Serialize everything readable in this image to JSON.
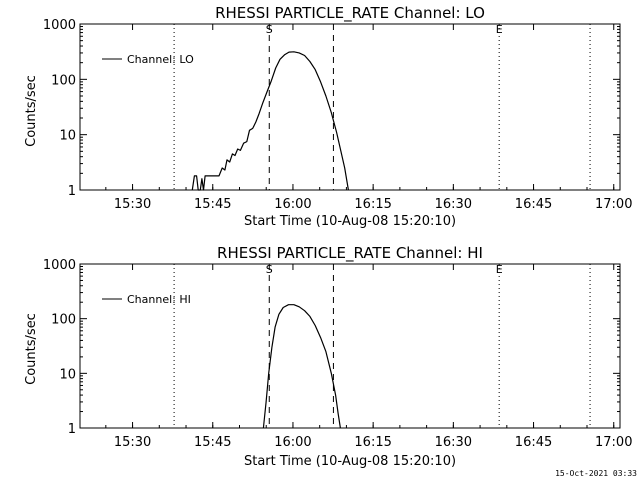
{
  "timestamp": "15-Oct-2021 03:33",
  "colors": {
    "line": "#000000",
    "background": "#ffffff"
  },
  "chart_data": [
    {
      "type": "line",
      "title": "RHESSI PARTICLE_RATE Channel: LO",
      "xlabel": "Start Time (10-Aug-08 15:20:10)",
      "ylabel": "Counts/sec",
      "x_unit": "minutes since 15:20:10",
      "xlim": [
        0,
        101
      ],
      "ylim": [
        1,
        1000
      ],
      "yscale": "log",
      "x_ticks": [
        {
          "value": 9.83,
          "label": "15:30"
        },
        {
          "value": 24.83,
          "label": "15:45"
        },
        {
          "value": 39.83,
          "label": "16:00"
        },
        {
          "value": 54.83,
          "label": "16:15"
        },
        {
          "value": 69.83,
          "label": "16:30"
        },
        {
          "value": 84.83,
          "label": "16:45"
        },
        {
          "value": 99.83,
          "label": "17:00"
        }
      ],
      "y_ticks": [
        {
          "value": 1,
          "label": "1"
        },
        {
          "value": 10,
          "label": "10"
        },
        {
          "value": 100,
          "label": "100"
        },
        {
          "value": 1000,
          "label": "1000"
        }
      ],
      "dotted_lines": [
        17.6,
        78.4,
        95.4
      ],
      "dashed_lines": [
        35.4,
        47.4
      ],
      "markers": [
        {
          "x": 35.4,
          "label": "S"
        },
        {
          "x": 78.4,
          "label": "E"
        }
      ],
      "legend": {
        "label": "Channel: LO",
        "placement": "top-left"
      },
      "series": [
        {
          "name": "Channel: LO",
          "points": [
            [
              21.0,
              1
            ],
            [
              21.4,
              1.8
            ],
            [
              21.8,
              1.8
            ],
            [
              22.1,
              1
            ],
            [
              22.5,
              1
            ],
            [
              22.8,
              1.6
            ],
            [
              23.1,
              1
            ],
            [
              23.4,
              1.8
            ],
            [
              24.4,
              1.8
            ],
            [
              25.0,
              1.8
            ],
            [
              26.0,
              1.8
            ],
            [
              26.6,
              2.5
            ],
            [
              27.1,
              2.3
            ],
            [
              27.5,
              3.5
            ],
            [
              28.0,
              3.2
            ],
            [
              28.5,
              4.5
            ],
            [
              29.0,
              4.2
            ],
            [
              29.5,
              5.5
            ],
            [
              30.0,
              5.2
            ],
            [
              30.6,
              7
            ],
            [
              31.2,
              7.5
            ],
            [
              31.7,
              12
            ],
            [
              32.3,
              13
            ],
            [
              32.9,
              17
            ],
            [
              33.5,
              24
            ],
            [
              34.2,
              38
            ],
            [
              35.0,
              60
            ],
            [
              35.8,
              95
            ],
            [
              36.6,
              160
            ],
            [
              37.4,
              230
            ],
            [
              38.3,
              280
            ],
            [
              39.1,
              310
            ],
            [
              40.0,
              315
            ],
            [
              41.0,
              300
            ],
            [
              42.0,
              270
            ],
            [
              43.0,
              210
            ],
            [
              44.0,
              150
            ],
            [
              45.0,
              90
            ],
            [
              46.0,
              50
            ],
            [
              47.0,
              25
            ],
            [
              48.0,
              11
            ],
            [
              48.8,
              5
            ],
            [
              49.5,
              2.5
            ],
            [
              50.2,
              1
            ]
          ]
        }
      ]
    },
    {
      "type": "line",
      "title": "RHESSI PARTICLE_RATE Channel: HI",
      "xlabel": "Start Time (10-Aug-08 15:20:10)",
      "ylabel": "Counts/sec",
      "x_unit": "minutes since 15:20:10",
      "xlim": [
        0,
        101
      ],
      "ylim": [
        1,
        1000
      ],
      "yscale": "log",
      "x_ticks": [
        {
          "value": 9.83,
          "label": "15:30"
        },
        {
          "value": 24.83,
          "label": "15:45"
        },
        {
          "value": 39.83,
          "label": "16:00"
        },
        {
          "value": 54.83,
          "label": "16:15"
        },
        {
          "value": 69.83,
          "label": "16:30"
        },
        {
          "value": 84.83,
          "label": "16:45"
        },
        {
          "value": 99.83,
          "label": "17:00"
        }
      ],
      "y_ticks": [
        {
          "value": 1,
          "label": "1"
        },
        {
          "value": 10,
          "label": "10"
        },
        {
          "value": 100,
          "label": "100"
        },
        {
          "value": 1000,
          "label": "1000"
        }
      ],
      "dotted_lines": [
        17.6,
        78.4,
        95.4
      ],
      "dashed_lines": [
        35.4,
        47.4
      ],
      "markers": [
        {
          "x": 35.4,
          "label": "S"
        },
        {
          "x": 78.4,
          "label": "E"
        }
      ],
      "legend": {
        "label": "Channel: HI",
        "placement": "top-left"
      },
      "series": [
        {
          "name": "Channel: HI",
          "points": [
            [
              34.3,
              1
            ],
            [
              34.8,
              3
            ],
            [
              35.3,
              10
            ],
            [
              35.9,
              30
            ],
            [
              36.5,
              70
            ],
            [
              37.2,
              120
            ],
            [
              38.0,
              160
            ],
            [
              39.0,
              180
            ],
            [
              40.0,
              180
            ],
            [
              41.0,
              165
            ],
            [
              42.0,
              140
            ],
            [
              43.0,
              110
            ],
            [
              44.0,
              75
            ],
            [
              45.0,
              45
            ],
            [
              46.0,
              25
            ],
            [
              47.0,
              10
            ],
            [
              47.8,
              4
            ],
            [
              48.3,
              1.8
            ],
            [
              48.7,
              1
            ]
          ]
        }
      ]
    }
  ]
}
